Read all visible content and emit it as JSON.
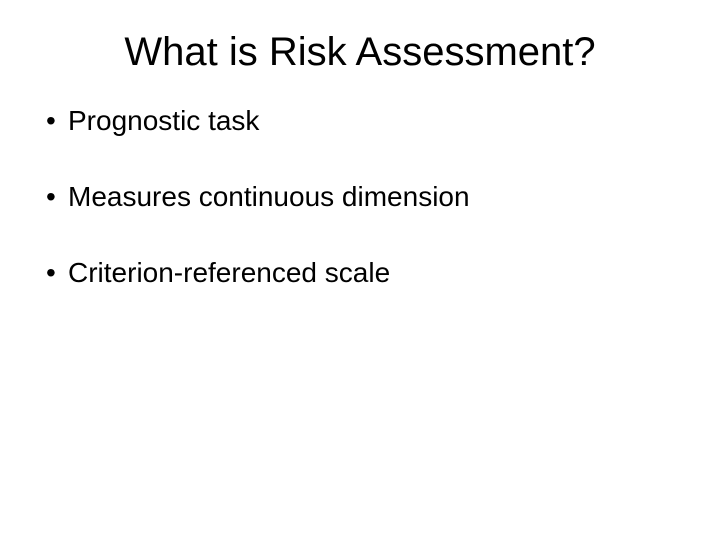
{
  "slide": {
    "title": "What is Risk Assessment?",
    "title_fontsize": 40,
    "title_color": "#000000",
    "bullet_fontsize": 28,
    "bullet_color": "#000000",
    "background_color": "#ffffff",
    "bullets": [
      "Prognostic task",
      "Measures continuous dimension",
      "Criterion-referenced scale"
    ]
  }
}
